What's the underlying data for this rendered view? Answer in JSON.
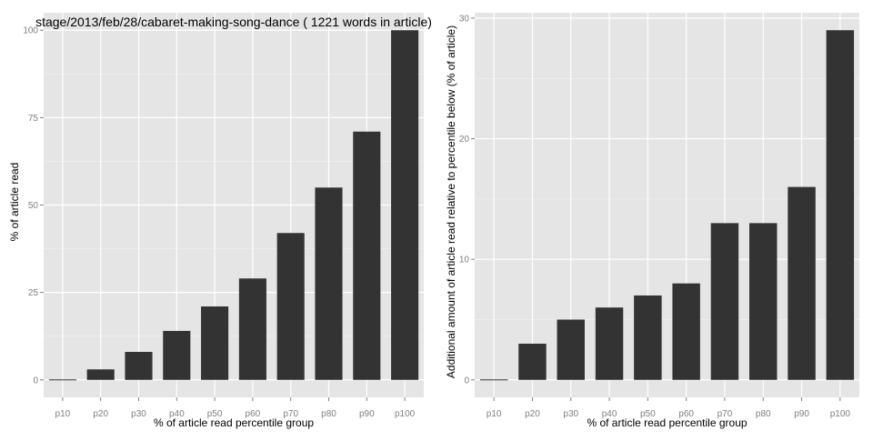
{
  "chart_data": [
    {
      "type": "bar",
      "title": "stage/2013/feb/28/cabaret-making-song-dance ( 1221 words in article)",
      "xlabel": "% of article read percentile group",
      "ylabel": "% of article read",
      "categories": [
        "p10",
        "p20",
        "p30",
        "p40",
        "p50",
        "p60",
        "p70",
        "p80",
        "p90",
        "p100"
      ],
      "values": [
        0,
        3,
        8,
        14,
        21,
        29,
        42,
        55,
        71,
        100
      ],
      "ylim": [
        -5,
        105
      ],
      "yticks": [
        0,
        25,
        50,
        75,
        100
      ],
      "grid": true
    },
    {
      "type": "bar",
      "title": "",
      "xlabel": "% of article read percentile group",
      "ylabel": "Additional amount of article read relative to percentile below (% of article)",
      "categories": [
        "p10",
        "p20",
        "p30",
        "p40",
        "p50",
        "p60",
        "p70",
        "p80",
        "p90",
        "p100"
      ],
      "values": [
        0,
        3,
        5,
        6,
        7,
        8,
        13,
        13,
        16,
        29
      ],
      "ylim": [
        -1.45,
        30.45
      ],
      "yticks": [
        0,
        10,
        20,
        30
      ],
      "grid": true
    }
  ],
  "colors": {
    "panel_background": "#e5e5e5",
    "grid": "#ffffff",
    "bar_fill": "#333333",
    "tick_text": "#7f7f7f"
  }
}
